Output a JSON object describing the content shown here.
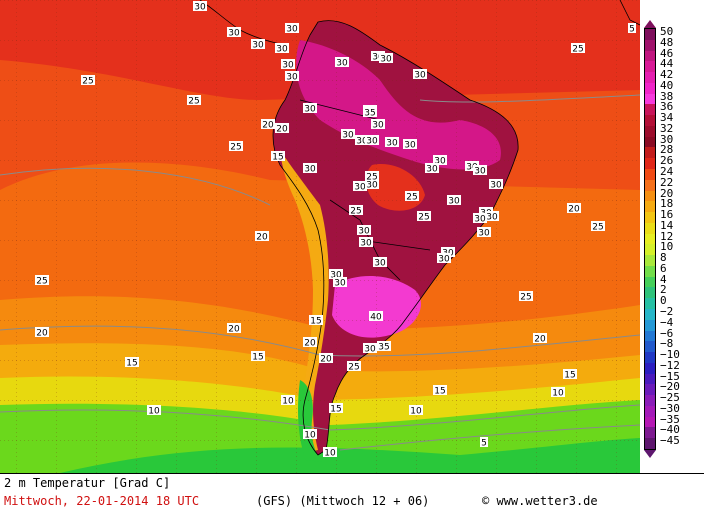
{
  "header": {},
  "map": {
    "title": "2 m Temperatur [Grad C]",
    "colors": {
      "ocean_hot": "#e4301c",
      "ocean_warm": "#ee4e16",
      "ocean_mid": "#f36a10",
      "ocean_cool": "#f58a0e",
      "ocean_cooler": "#f4ab0d",
      "yellow": "#e7d90f",
      "green": "#6bd81c",
      "green_dark": "#29c83a",
      "land_hot": "#a01240",
      "land_magenta": "#d41788",
      "land_pink": "#f33ad0"
    },
    "isotherm_labels": [
      "30",
      "30",
      "30",
      "30",
      "30",
      "30",
      "30",
      "30",
      "30",
      "30",
      "30",
      "30",
      "30",
      "30",
      "30",
      "30",
      "30",
      "30",
      "30",
      "30",
      "30",
      "30",
      "30",
      "30",
      "30",
      "30",
      "30",
      "30",
      "30",
      "30",
      "30",
      "30",
      "30",
      "30",
      "30",
      "30",
      "30",
      "30",
      "30",
      "30",
      "25",
      "25",
      "25",
      "25",
      "25",
      "25",
      "25",
      "25",
      "25",
      "25",
      "25",
      "25",
      "20",
      "20",
      "20",
      "20",
      "20",
      "20",
      "20",
      "20",
      "20",
      "15",
      "15",
      "15",
      "15",
      "15",
      "15",
      "15",
      "10",
      "10",
      "10",
      "10",
      "10",
      "10",
      "35",
      "35",
      "40",
      "5",
      "5"
    ]
  },
  "legend": {
    "values": [
      "50",
      "48",
      "46",
      "44",
      "42",
      "40",
      "38",
      "36",
      "34",
      "32",
      "30",
      "28",
      "26",
      "24",
      "22",
      "20",
      "18",
      "16",
      "14",
      "12",
      "10",
      "8",
      "6",
      "4",
      "2",
      "0",
      "−2",
      "−4",
      "−6",
      "−8",
      "−10",
      "−12",
      "−15",
      "−20",
      "−25",
      "−30",
      "−35",
      "−40",
      "−45"
    ],
    "colors": [
      "#7e0f5c",
      "#a0126c",
      "#c0167f",
      "#d81a96",
      "#e51fb0",
      "#f025c8",
      "#f63adc",
      "#c8155a",
      "#b31037",
      "#9c0d2c",
      "#8a0b24",
      "#c21c1c",
      "#e02718",
      "#f04a14",
      "#f5701a",
      "#f58f12",
      "#f5aa12",
      "#f2c514",
      "#eadd18",
      "#e6ee22",
      "#d4f02a",
      "#a8e83c",
      "#72dd4a",
      "#45cf5a",
      "#2ec27a",
      "#26c0a4",
      "#27b6c8",
      "#2599d6",
      "#2278d4",
      "#2159cc",
      "#2038c4",
      "#2b1ec0",
      "#4a1bbd",
      "#6a1cba",
      "#8a1db8",
      "#a31ab8",
      "#b518b4",
      "#7d1a90",
      "#5e176e"
    ]
  },
  "footer": {
    "title": "2 m Temperatur [Grad C]",
    "date": "Mittwoch, 22-01-2014  18 UTC",
    "model": "(GFS)  (Mittwoch 12 + 06)",
    "copyright": "www.wetter3.de",
    "copyright_symbol": "©"
  }
}
